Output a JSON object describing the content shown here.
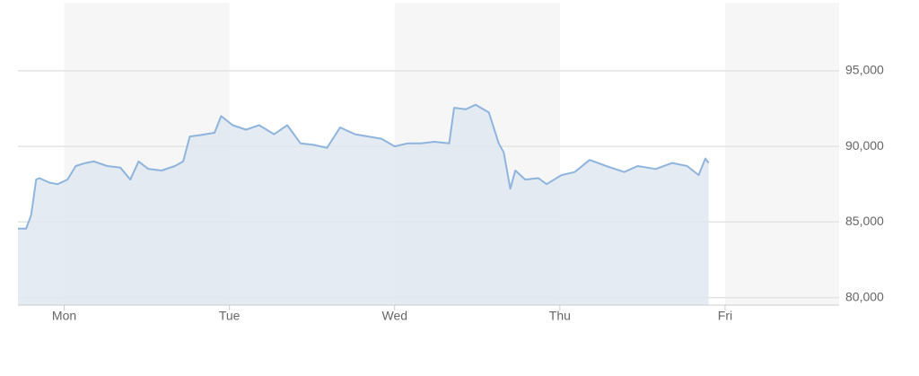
{
  "chart_data": {
    "type": "area",
    "color": "#8fb4dd",
    "fill": "#dfe7f0",
    "band_color": "#f6f6f6",
    "grid": true,
    "xlim": [
      -0.28,
      4.69
    ],
    "ylim": [
      79500,
      99500
    ],
    "xticks": [
      {
        "value": 0,
        "label": "Mon"
      },
      {
        "value": 1,
        "label": "Tue"
      },
      {
        "value": 2,
        "label": "Wed"
      },
      {
        "value": 3,
        "label": "Thu"
      },
      {
        "value": 4,
        "label": "Fri"
      }
    ],
    "yticks": [
      {
        "value": 80000,
        "label": "80,000"
      },
      {
        "value": 85000,
        "label": "85,000"
      },
      {
        "value": 90000,
        "label": "90,000"
      },
      {
        "value": 95000,
        "label": "95,000"
      }
    ],
    "x": [
      -0.28,
      -0.23,
      -0.2,
      -0.17,
      -0.15,
      -0.09,
      -0.04,
      0.02,
      0.07,
      0.13,
      0.18,
      0.26,
      0.34,
      0.4,
      0.45,
      0.51,
      0.59,
      0.67,
      0.72,
      0.76,
      0.83,
      0.91,
      0.95,
      1.02,
      1.1,
      1.18,
      1.27,
      1.35,
      1.43,
      1.51,
      1.59,
      1.67,
      1.76,
      1.84,
      1.92,
      2.0,
      2.08,
      2.16,
      2.24,
      2.33,
      2.36,
      2.43,
      2.49,
      2.57,
      2.63,
      2.66,
      2.7,
      2.73,
      2.79,
      2.87,
      2.92,
      3.01,
      3.09,
      3.18,
      3.28,
      3.39,
      3.47,
      3.58,
      3.68,
      3.77,
      3.84,
      3.88,
      3.9
    ],
    "values": [
      84560,
      84560,
      85450,
      87800,
      87900,
      87600,
      87500,
      87800,
      88700,
      88900,
      89000,
      88700,
      88600,
      87800,
      89000,
      88500,
      88400,
      88700,
      89000,
      90650,
      90750,
      90900,
      92000,
      91400,
      91100,
      91400,
      90800,
      91400,
      90200,
      90100,
      89900,
      91250,
      90800,
      90650,
      90500,
      90000,
      90200,
      90200,
      90300,
      90200,
      92550,
      92450,
      92750,
      92250,
      90200,
      89600,
      87200,
      88400,
      87800,
      87900,
      87500,
      88100,
      88300,
      89100,
      88700,
      88300,
      88700,
      88500,
      88900,
      88700,
      88100,
      89200,
      88900
    ]
  }
}
